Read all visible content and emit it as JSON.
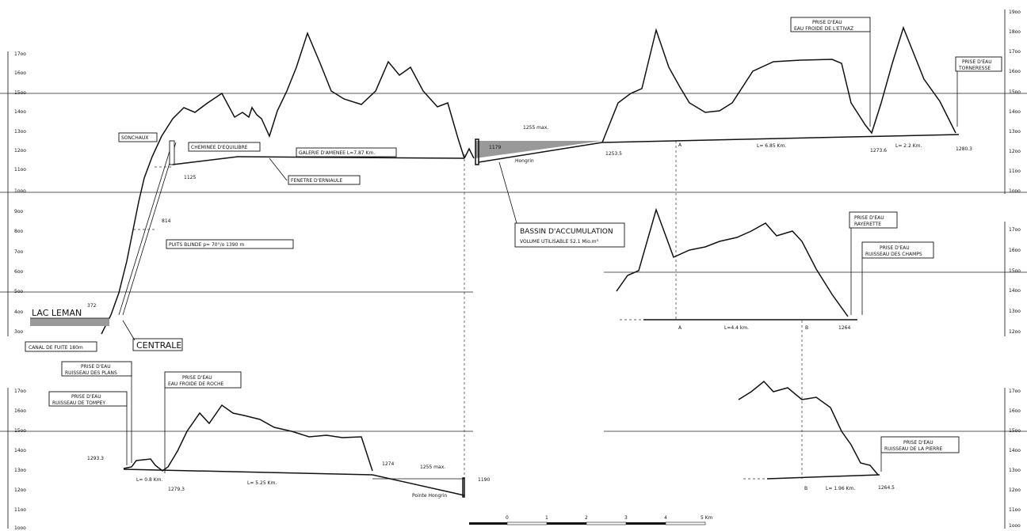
{
  "axes": {
    "left_main": [
      "17oo",
      "16oo",
      "15oo",
      "14oo",
      "13oo",
      "12oo",
      "11oo",
      "1ooo",
      "9oo",
      "8oo",
      "7oo",
      "6oo",
      "5oo",
      "4oo",
      "3oo"
    ],
    "left_lower": [
      "17oo",
      "16oo",
      "15oo",
      "14oo",
      "13oo",
      "12oo",
      "11oo",
      "1ooo"
    ],
    "right_top": [
      "19oo",
      "18oo",
      "17oo",
      "16oo",
      "15oo",
      "14oo",
      "13oo",
      "12oo",
      "11oo",
      "1ooo"
    ],
    "right_mid": [
      "17oo",
      "16oo",
      "15oo",
      "14oo",
      "13oo",
      "12oo"
    ],
    "right_low": [
      "17oo",
      "16oo",
      "15oo",
      "14oo",
      "13oo",
      "12oo",
      "11oo",
      "1ooo"
    ]
  },
  "labels": {
    "lac_leman": "LAC LEMAN",
    "lac_level": "372",
    "canal": "CANAL DE FUITE 180m",
    "centrale": "CENTRALE",
    "sonchaux": "SONCHAUX",
    "cheminee": "CHEMINEE D'EQUILIBRE",
    "galerie": "GALERIE D'AMENEE L=7.87 Km.",
    "fenetre": "FENETRE D'ERNIAULE",
    "puits": "PUITS BLINDE p= 70°/o 1390 m",
    "elev_1125": "1125",
    "elev_814": "814",
    "elev_1255": "1255 max.",
    "elev_1179": "1179",
    "hongrin": "Hongrin",
    "elev_1253": "1253.5",
    "bassin_title": "BASSIN D'ACCUMULATION",
    "bassin_volume": "VOLUME UTILISABLE 52.1 Mio.m³",
    "prise_etivaz": [
      "PRISE D'EAU",
      "EAU FROIDE DE L'ETIVAZ"
    ],
    "prise_tornexesse": [
      "PRISE D'EAU",
      "TORNERESSE"
    ],
    "point_a": "A",
    "len_685": "L= 6.85 Km.",
    "len_22": "L= 2.2 Km.",
    "elev_12736": "1273.6",
    "elev_1280": "1280.3",
    "prise_rayerette": [
      "PRISE D'EAU",
      "RAYERETTE"
    ],
    "prise_champs": [
      "PRISE D'EAU",
      "RUISSEAU DES CHAMPS"
    ],
    "point_a2": "A",
    "point_b": "B",
    "len_44": "L=4.4 km.",
    "elev_1264": "1264",
    "prise_plans": [
      "PRISE D'EAU",
      "RUISSEAU DES PLANS"
    ],
    "prise_tompey": [
      "PRISE D'EAU",
      "RUISSEAU DE TOMPEY"
    ],
    "prise_roche": [
      "PRISE D'EAU",
      "EAU FROIDE DE ROCHE"
    ],
    "elev_12933": "1293.3",
    "len_08": "L= 0.8 Km.",
    "elev_12793": "1279.3",
    "len_525": "L= 5.25 Km.",
    "elev_1274": "1274",
    "elev_1255b": "1255 max.",
    "point_hongrin": "Pointe Hongrin",
    "elev_1190": "1190",
    "prise_pierre": [
      "PRISE D'EAU",
      "RUISSEAU DE LA PIERRE"
    ],
    "point_b2": "B",
    "len_196": "L= 1.96 Km.",
    "elev_12645": "1264.5"
  },
  "scale": {
    "ticks": [
      "0",
      "1",
      "2",
      "3",
      "4",
      "5 Km"
    ]
  }
}
